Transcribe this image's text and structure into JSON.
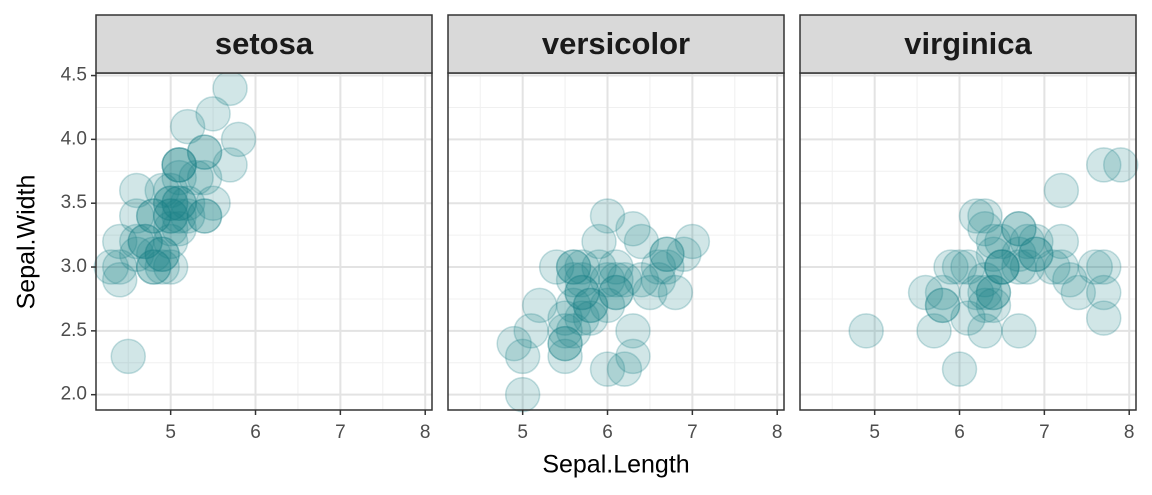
{
  "chart_data": {
    "type": "scatter",
    "x_label": "Sepal.Length",
    "y_label": "Sepal.Width",
    "color": "#1a8088",
    "grid": true,
    "xlim": [
      4.12,
      8.08
    ],
    "ylim": [
      1.88,
      4.52
    ],
    "xticks": [
      5,
      6,
      7,
      8
    ],
    "yticks": [
      {
        "value": 2,
        "label": "2.0"
      },
      2.5,
      {
        "value": 3,
        "label": "3.0"
      },
      3.5,
      {
        "value": 4,
        "label": "4.0"
      },
      4.5
    ],
    "panels": [
      {
        "title": "setosa",
        "x": [
          5.1,
          4.9,
          4.7,
          4.6,
          5.0,
          5.4,
          4.6,
          5.0,
          4.4,
          4.9,
          5.4,
          4.8,
          4.8,
          4.3,
          5.8,
          5.7,
          5.4,
          5.1,
          5.7,
          5.1,
          5.4,
          5.1,
          4.6,
          5.1,
          4.8,
          5.0,
          5.0,
          5.2,
          5.2,
          4.7,
          4.8,
          5.4,
          5.2,
          5.5,
          4.9,
          5.0,
          5.5,
          4.9,
          4.4,
          5.1,
          5.0,
          4.5,
          4.4,
          5.0,
          5.1,
          4.8,
          5.1,
          4.6,
          5.3,
          5.0
        ],
        "y": [
          3.5,
          3.0,
          3.2,
          3.1,
          3.6,
          3.9,
          3.4,
          3.4,
          2.9,
          3.1,
          3.7,
          3.4,
          3.0,
          3.0,
          4.0,
          4.4,
          3.9,
          3.5,
          3.8,
          3.8,
          3.4,
          3.7,
          3.6,
          3.3,
          3.4,
          3.0,
          3.4,
          3.5,
          3.4,
          3.2,
          3.1,
          3.4,
          4.1,
          4.2,
          3.1,
          3.2,
          3.5,
          3.6,
          3.0,
          3.4,
          3.5,
          2.3,
          3.2,
          3.5,
          3.8,
          3.0,
          3.8,
          3.2,
          3.7,
          3.3
        ]
      },
      {
        "title": "versicolor",
        "x": [
          7.0,
          6.4,
          6.9,
          5.5,
          6.5,
          5.7,
          6.3,
          4.9,
          6.6,
          5.2,
          5.0,
          5.9,
          6.0,
          6.1,
          5.6,
          6.7,
          5.6,
          5.8,
          6.2,
          5.6,
          5.9,
          6.1,
          6.3,
          6.1,
          6.4,
          6.6,
          6.8,
          6.7,
          6.0,
          5.7,
          5.5,
          5.5,
          5.8,
          6.0,
          5.4,
          6.0,
          6.7,
          6.3,
          5.6,
          5.5,
          5.5,
          6.1,
          5.8,
          5.0,
          5.6,
          5.7,
          5.7,
          6.2,
          5.1,
          5.7
        ],
        "y": [
          3.2,
          3.2,
          3.1,
          2.3,
          2.8,
          2.8,
          3.3,
          2.4,
          2.9,
          2.7,
          2.0,
          3.0,
          2.2,
          2.9,
          2.9,
          3.1,
          3.0,
          2.7,
          2.2,
          2.5,
          3.2,
          2.8,
          2.5,
          2.8,
          2.9,
          3.0,
          2.8,
          3.0,
          2.9,
          2.6,
          2.4,
          2.4,
          2.7,
          2.7,
          3.0,
          3.4,
          3.1,
          2.3,
          3.0,
          2.5,
          2.6,
          3.0,
          2.6,
          2.3,
          2.7,
          3.0,
          2.9,
          2.9,
          2.5,
          2.8
        ]
      },
      {
        "title": "virginica",
        "x": [
          6.3,
          5.8,
          7.1,
          6.3,
          6.5,
          7.6,
          4.9,
          7.3,
          6.7,
          7.2,
          6.5,
          6.4,
          6.8,
          5.7,
          5.8,
          6.4,
          6.5,
          7.7,
          7.7,
          6.0,
          6.9,
          5.6,
          7.7,
          6.3,
          6.7,
          7.2,
          6.2,
          6.1,
          6.4,
          7.2,
          7.4,
          7.9,
          6.4,
          6.3,
          6.1,
          7.7,
          6.3,
          6.4,
          6.0,
          6.9,
          6.7,
          6.9,
          5.8,
          6.8,
          6.7,
          6.7,
          6.3,
          6.5,
          6.2,
          5.9
        ],
        "y": [
          3.3,
          2.7,
          3.0,
          2.9,
          3.0,
          3.0,
          2.5,
          2.9,
          2.5,
          3.6,
          3.2,
          2.7,
          3.0,
          2.5,
          2.8,
          3.2,
          3.0,
          3.8,
          2.6,
          2.2,
          3.2,
          2.8,
          2.8,
          2.7,
          3.3,
          3.2,
          2.8,
          3.0,
          2.8,
          3.0,
          2.8,
          3.8,
          2.8,
          2.8,
          2.6,
          3.0,
          3.4,
          3.1,
          3.0,
          3.1,
          3.1,
          3.1,
          2.7,
          3.2,
          3.3,
          3.0,
          2.5,
          3.0,
          3.4,
          3.0
        ]
      }
    ]
  }
}
